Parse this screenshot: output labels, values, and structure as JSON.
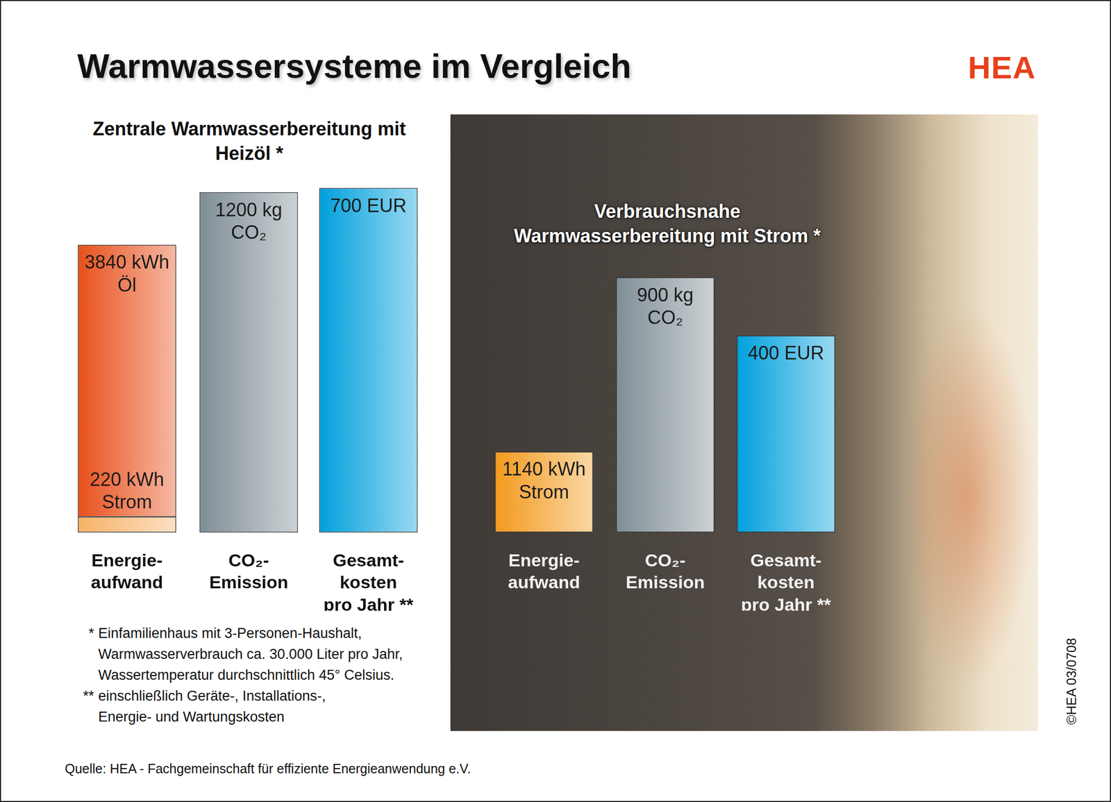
{
  "title": "Warmwassersysteme im Vergleich",
  "brand": "HEA",
  "panel_titles": [
    "Zentrale Warmwasserbereitung mit Heizöl *",
    "Verbrauchsnahe Warmwasserbereitung mit Strom *"
  ],
  "chart_data": [
    {
      "type": "bar",
      "categories": [
        [
          "Energie-",
          "aufwand"
        ]
      ],
      "stacked": true,
      "series": [
        {
          "values": [
            220
          ],
          "value_labels": [
            [
              "220 kWh",
              "Strom"
            ]
          ],
          "color": "#f7b267"
        },
        {
          "values": [
            3840
          ],
          "value_labels": [
            [
              "3840 kWh",
              "Öl"
            ]
          ],
          "color": "#e8501c"
        }
      ],
      "ylim": [
        0,
        5000
      ],
      "tick_labels": "x",
      "grid": false,
      "data_labels": true
    },
    {
      "type": "bar",
      "categories": [
        [
          "CO₂-",
          "Emission"
        ]
      ],
      "values": [
        1200
      ],
      "value_labels": [
        [
          "1200 kg",
          "CO₂"
        ]
      ],
      "color": "#7f8e96",
      "ylim": [
        0,
        1250
      ],
      "tick_labels": "x",
      "grid": false,
      "data_labels": true
    },
    {
      "type": "bar",
      "categories": [
        [
          "Gesamt-",
          "kosten",
          "pro Jahr **"
        ]
      ],
      "values": [
        700
      ],
      "value_labels": [
        [
          "700 EUR"
        ]
      ],
      "color": "#00a0dc",
      "ylim": [
        0,
        720
      ],
      "tick_labels": "x",
      "grid": false,
      "data_labels": true
    },
    {
      "type": "bar",
      "categories": [
        [
          "Energie-",
          "aufwand"
        ]
      ],
      "values": [
        1140
      ],
      "value_labels": [
        [
          "1140 kWh",
          "Strom"
        ]
      ],
      "color": "#f39a1e",
      "ylim": [
        0,
        5000
      ],
      "tick_labels": "x",
      "grid": false,
      "data_labels": true
    },
    {
      "type": "bar",
      "categories": [
        [
          "CO₂-",
          "Emission"
        ]
      ],
      "values": [
        900
      ],
      "value_labels": [
        [
          "900 kg",
          "CO₂"
        ]
      ],
      "color": "#7f8e96",
      "ylim": [
        0,
        1250
      ],
      "tick_labels": "x",
      "grid": false,
      "data_labels": true
    },
    {
      "type": "bar",
      "categories": [
        [
          "Gesamt-",
          "kosten",
          "pro Jahr **"
        ]
      ],
      "values": [
        400
      ],
      "value_labels": [
        [
          "400 EUR"
        ]
      ],
      "color": "#00a0dc",
      "ylim": [
        0,
        720
      ],
      "tick_labels": "x",
      "grid": false,
      "data_labels": true
    }
  ],
  "footnotes": [
    [
      "* Einfamilienhaus mit 3-Personen-Haushalt,",
      "Warmwasserverbrauch ca. 30.000 Liter pro Jahr,",
      "Wassertemperatur durchschnittlich 45° Celsius."
    ],
    [
      "** einschließlich Geräte-, Installations-,",
      "Energie- und Wartungskosten"
    ]
  ],
  "source": "Quelle: HEA - Fachgemeinschaft für effiziente Energieanwendung e.V.",
  "copyright": "©HEA 03/0708"
}
